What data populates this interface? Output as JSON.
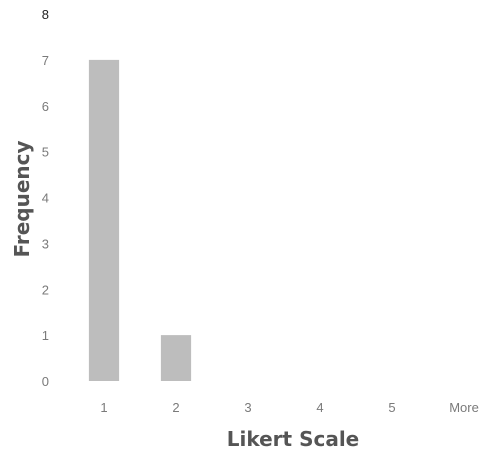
{
  "chart_data": {
    "type": "bar",
    "title": "",
    "xlabel": "Likert Scale",
    "ylabel": "Frequency",
    "categories": [
      "1",
      "2",
      "3",
      "4",
      "5",
      "More"
    ],
    "values": [
      7,
      1,
      0,
      0,
      0,
      0
    ],
    "ylim": [
      0,
      8
    ],
    "yticks": [
      "0",
      "1",
      "2",
      "3",
      "4",
      "5",
      "6",
      "7",
      "8"
    ],
    "grid": false,
    "legend": "none",
    "bar_color": "#bdbdbd",
    "tick_color": "#7a7a7a"
  }
}
